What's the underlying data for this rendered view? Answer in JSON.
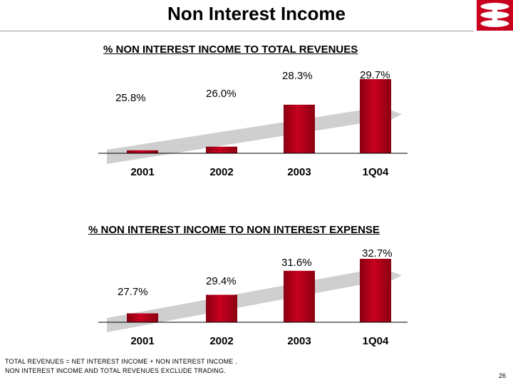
{
  "page": {
    "title": "Non Interest Income",
    "page_number": "26",
    "footnotes": [
      "TOTAL REVENUES = NET INTEREST INCOME  + NON INTEREST INCOME .",
      "NON INTEREST INCOME AND TOTAL REVENUES EXCLUDE  TRADING."
    ]
  },
  "colors": {
    "bar": "#c8001e",
    "bar_dark": "#8a0012",
    "arrow": "#cfcfcf",
    "brand": "#c8001e"
  },
  "chart_data": [
    {
      "type": "bar",
      "title": "% NON INTEREST INCOME TO TOTAL REVENUES",
      "categories": [
        "2001",
        "2002",
        "2003",
        "1Q04"
      ],
      "values": [
        25.8,
        26.0,
        28.3,
        29.7
      ],
      "data_labels": [
        "25.8%",
        "26.0%",
        "28.3%",
        "29.7%"
      ],
      "xlabel": "",
      "ylabel": "",
      "grid": false,
      "legend": "none"
    },
    {
      "type": "bar",
      "title": "% NON INTEREST INCOME TO NON INTEREST EXPENSE",
      "categories": [
        "2001",
        "2002",
        "2003",
        "1Q04"
      ],
      "values": [
        27.7,
        29.4,
        31.6,
        32.7
      ],
      "data_labels": [
        "27.7%",
        "29.4%",
        "31.6%",
        "32.7%"
      ],
      "xlabel": "",
      "ylabel": "",
      "grid": false,
      "legend": "none"
    }
  ]
}
